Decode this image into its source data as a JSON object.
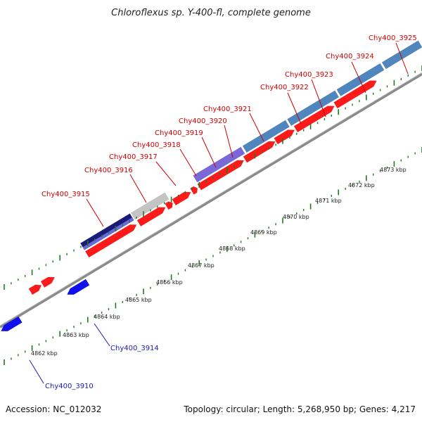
{
  "title": "Chloroflexus sp. Y-400-fl, complete genome",
  "footer": {
    "accession": "Accession: NC_012032",
    "topology": "Topology: circular; Length: 5,268,950 bp; Genes: 4,217"
  },
  "colors": {
    "forward_cds": "#ff1a1a",
    "reverse_cds": "#1010ee",
    "cog_blue": "#4f86bd",
    "cog_purple": "#7b68d8",
    "cog_navy": "#1a1a7a",
    "cog_gray": "#c4c4c4",
    "tick_green": "#1f7a1f",
    "backbone": "#8a8a8a",
    "label_red": "#cc0000",
    "label_blue": "#1a1ab0"
  },
  "ticks": [
    {
      "label": "4862 kbp"
    },
    {
      "label": "4863 kbp"
    },
    {
      "label": "4864 kbp"
    },
    {
      "label": "4865 kbp"
    },
    {
      "label": "4866 kbp"
    },
    {
      "label": "4867 kbp"
    },
    {
      "label": "4868 kbp"
    },
    {
      "label": "4869 kbp"
    },
    {
      "label": "4870 kbp"
    },
    {
      "label": "4871 kbp"
    },
    {
      "label": "4872 kbp"
    },
    {
      "label": "4873 kbp"
    }
  ],
  "gene_labels": [
    {
      "name": "Chy400_3910",
      "strand": "reverse"
    },
    {
      "name": "Chy400_3914",
      "strand": "reverse"
    },
    {
      "name": "Chy400_3915",
      "strand": "forward"
    },
    {
      "name": "Chy400_3916",
      "strand": "forward"
    },
    {
      "name": "Chy400_3917",
      "strand": "forward"
    },
    {
      "name": "Chy400_3918",
      "strand": "forward"
    },
    {
      "name": "Chy400_3919",
      "strand": "forward"
    },
    {
      "name": "Chy400_3920",
      "strand": "forward"
    },
    {
      "name": "Chy400_3921",
      "strand": "forward"
    },
    {
      "name": "Chy400_3922",
      "strand": "forward"
    },
    {
      "name": "Chy400_3923",
      "strand": "forward"
    },
    {
      "name": "Chy400_3924",
      "strand": "forward"
    },
    {
      "name": "Chy400_3925",
      "strand": "forward"
    }
  ]
}
